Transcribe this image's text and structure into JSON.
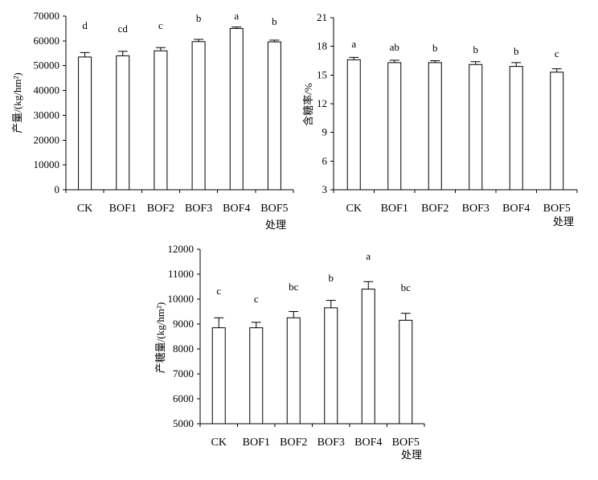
{
  "chart_data": [
    {
      "type": "bar",
      "categories": [
        "CK",
        "BOF1",
        "BOF2",
        "BOF3",
        "BOF4",
        "BOF5"
      ],
      "values": [
        53500,
        54000,
        56000,
        59700,
        65000,
        59600
      ],
      "errors": [
        1800,
        1800,
        1300,
        900,
        600,
        700
      ],
      "letters": [
        "d",
        "cd",
        "c",
        "b",
        "a",
        "b"
      ],
      "ylabel": "产量/(kg/hm²)",
      "xlabel": "处理",
      "ylim": [
        0,
        70000
      ],
      "yticks": [
        0,
        10000,
        20000,
        30000,
        40000,
        50000,
        60000,
        70000
      ],
      "grid": false
    },
    {
      "type": "bar",
      "categories": [
        "CK",
        "BOF1",
        "BOF2",
        "BOF3",
        "BOF4",
        "BOF5"
      ],
      "values": [
        16.6,
        16.3,
        16.3,
        16.1,
        15.9,
        15.3
      ],
      "errors": [
        0.25,
        0.25,
        0.2,
        0.3,
        0.4,
        0.35
      ],
      "letters": [
        "a",
        "ab",
        "b",
        "b",
        "b",
        "c"
      ],
      "ylabel": "含糖率/%",
      "xlabel": "处理",
      "ylim": [
        3,
        21
      ],
      "yticks": [
        3,
        6,
        9,
        12,
        15,
        18,
        21
      ],
      "grid": false
    },
    {
      "type": "bar",
      "categories": [
        "CK",
        "BOF1",
        "BOF2",
        "BOF3",
        "BOF4",
        "BOF5"
      ],
      "values": [
        8850,
        8850,
        9250,
        9650,
        10400,
        9150
      ],
      "errors": [
        400,
        220,
        250,
        300,
        300,
        280
      ],
      "letters": [
        "c",
        "c",
        "bc",
        "b",
        "a",
        "bc"
      ],
      "ylabel": "产糖量/(kg/hm²)",
      "xlabel": "处理",
      "ylim": [
        5000,
        12000
      ],
      "yticks": [
        5000,
        6000,
        7000,
        8000,
        9000,
        10000,
        11000,
        12000
      ],
      "grid": false
    }
  ]
}
